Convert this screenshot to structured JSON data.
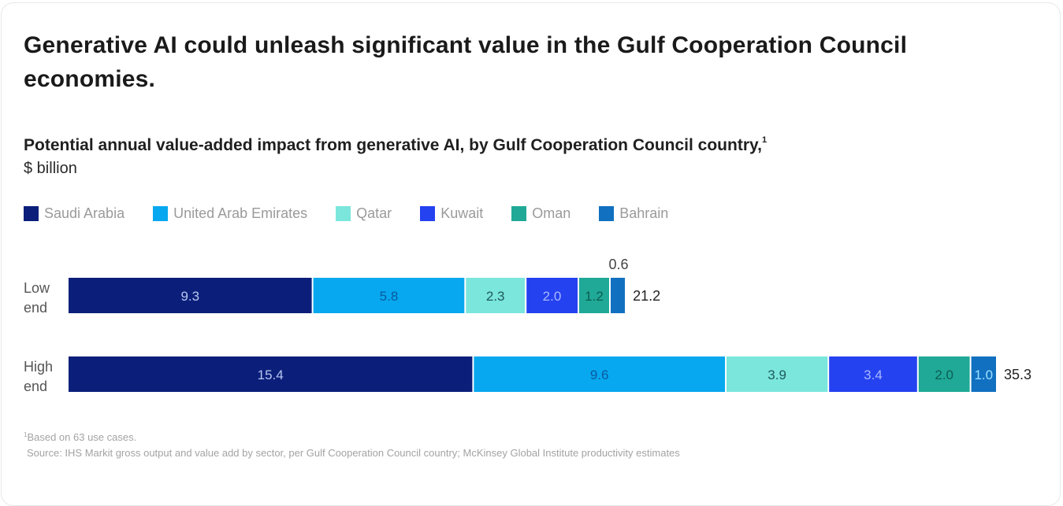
{
  "chart_data": {
    "type": "bar",
    "orientation": "horizontal",
    "stacked": true,
    "title": "Generative AI could unleash significant value in the Gulf Cooperation Council economies.",
    "subtitle": "Potential annual value-added impact from generative AI, by Gulf Cooperation Council country,",
    "subtitle_footnote_marker": "1",
    "units": "$ billion",
    "categories": [
      {
        "label_line1": "Low",
        "label_line2": "end",
        "total": "21.2"
      },
      {
        "label_line1": "High",
        "label_line2": "end",
        "total": "35.3"
      }
    ],
    "series": [
      {
        "name": "Saudi Arabia",
        "color": "#0b1f7a",
        "label_color": "#b8c6f0",
        "values": [
          9.3,
          15.4
        ],
        "labels": [
          "9.3",
          "15.4"
        ]
      },
      {
        "name": "United Arab Emirates",
        "color": "#07a8ef",
        "label_color": "#0a5aa0",
        "values": [
          5.8,
          9.6
        ],
        "labels": [
          "5.8",
          "9.6"
        ]
      },
      {
        "name": "Qatar",
        "color": "#7ae6dc",
        "label_color": "#1f5a5a",
        "values": [
          2.3,
          3.9
        ],
        "labels": [
          "2.3",
          "3.9"
        ]
      },
      {
        "name": "Kuwait",
        "color": "#2442f0",
        "label_color": "#a9b8ff",
        "values": [
          2.0,
          3.4
        ],
        "labels": [
          "2.0",
          "3.4"
        ]
      },
      {
        "name": "Oman",
        "color": "#1fa996",
        "label_color": "#0d5e56",
        "values": [
          1.2,
          2.0
        ],
        "labels": [
          "1.2",
          "2.0"
        ]
      },
      {
        "name": "Bahrain",
        "color": "#1170c0",
        "label_color": "#9fe0ff",
        "values": [
          0.6,
          1.0
        ],
        "labels": [
          "0.6",
          "1.0"
        ]
      }
    ],
    "outside_labels": [
      {
        "category_index": 0,
        "series_index": 5,
        "text": "0.6"
      }
    ],
    "xlim": [
      0,
      35.3
    ],
    "grid": false,
    "legend_position": "top-left"
  },
  "footnotes": {
    "note_marker": "1",
    "note": "Based on 63 use cases.",
    "source": "Source: IHS Markit gross output and value add by sector, per Gulf Cooperation Council country; McKinsey Global Institute productivity estimates"
  }
}
